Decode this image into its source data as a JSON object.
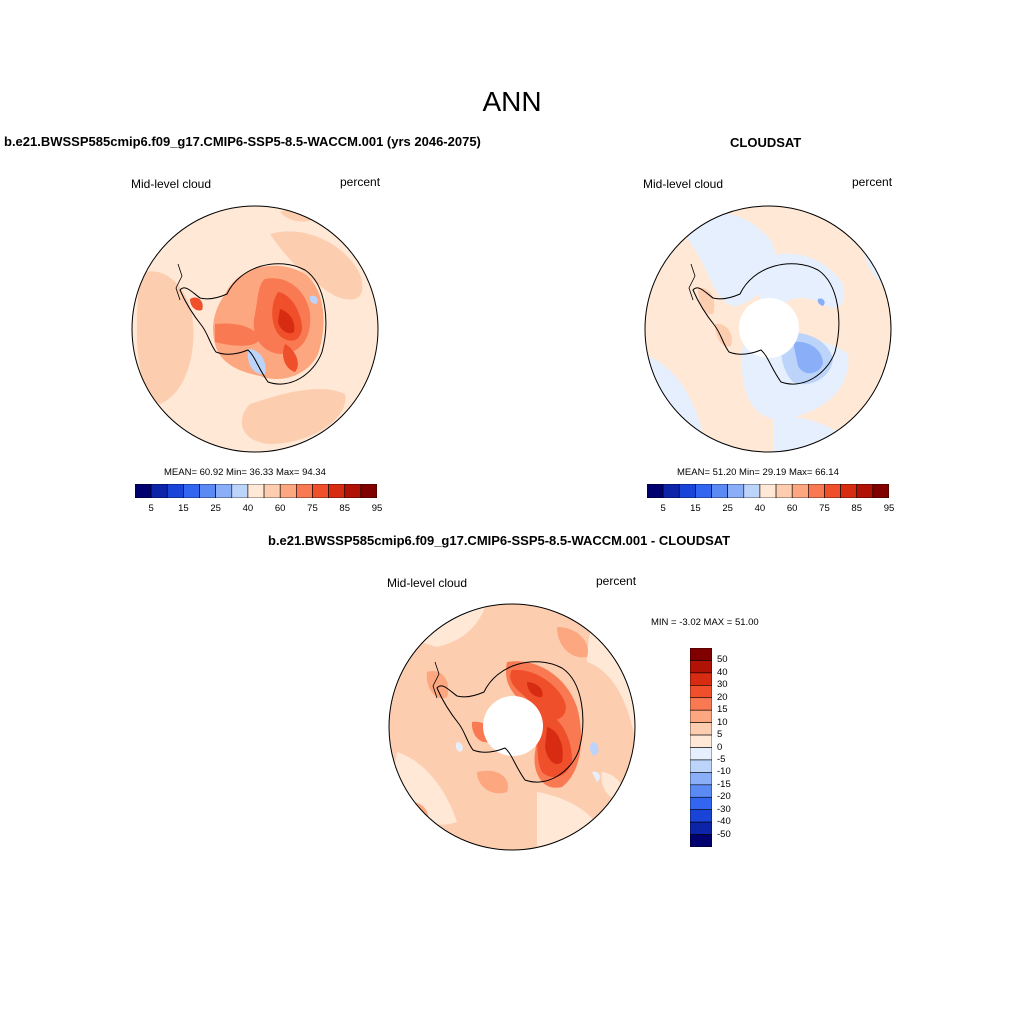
{
  "title": "ANN",
  "panels": [
    {
      "title": "b.e21.BWSSP585cmip6.f09_g17.CMIP6-SSP5-8.5-WACCM.001 (yrs 2046-2075)",
      "left_label": "Mid-level cloud",
      "right_label": "percent",
      "stats": "MEAN=  60.92  Min=  36.33  Max=  94.34"
    },
    {
      "title": "CLOUDSAT",
      "left_label": "Mid-level cloud",
      "right_label": "percent",
      "stats": "MEAN=  51.20  Min=  29.19  Max=  66.14"
    },
    {
      "title": "b.e21.BWSSP585cmip6.f09_g17.CMIP6-SSP5-8.5-WACCM.001 - CLOUDSAT",
      "left_label": "Mid-level cloud",
      "right_label": "percent",
      "stats": "MIN =  -3.02 MAX =  51.00"
    }
  ],
  "colorbar_abs": {
    "colors": [
      "#00006e",
      "#0b24a8",
      "#1a44d8",
      "#3366f0",
      "#5b8af5",
      "#8aaff8",
      "#bcd4f9",
      "#ffe8d6",
      "#fdcdb0",
      "#fca780",
      "#f97a52",
      "#ef4f2a",
      "#d82c12",
      "#b01205",
      "#800000"
    ],
    "tick_labels": [
      "5",
      "15",
      "25",
      "40",
      "60",
      "75",
      "85",
      "95"
    ]
  },
  "colorbar_diff": {
    "colors": [
      "#00006e",
      "#0b24a8",
      "#1a44d8",
      "#3366f0",
      "#5b8af5",
      "#8aaff8",
      "#bcd4f9",
      "#e6effd",
      "#ffe8d6",
      "#fdcdb0",
      "#fca780",
      "#f97a52",
      "#ef4f2a",
      "#d82c12",
      "#b01205",
      "#800000"
    ],
    "tick_labels": [
      "50",
      "40",
      "30",
      "20",
      "15",
      "10",
      "5",
      "0",
      "-5",
      "-10",
      "-15",
      "-20",
      "-30",
      "-40",
      "-50"
    ]
  }
}
